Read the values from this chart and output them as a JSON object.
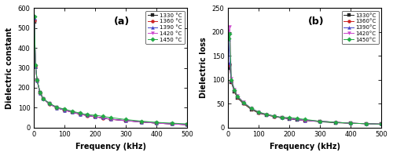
{
  "title_a": "(a)",
  "title_b": "(b)",
  "xlabel": "Frequency (kHz)",
  "ylabel_a": "Dielectric constant",
  "ylabel_b": "Dielectric loss",
  "ylim_a": [
    0,
    600
  ],
  "ylim_b": [
    0,
    250
  ],
  "xlim": [
    0,
    500
  ],
  "yticks_a": [
    0,
    100,
    200,
    300,
    400,
    500,
    600
  ],
  "yticks_b": [
    0,
    50,
    100,
    150,
    200,
    250
  ],
  "xticks": [
    0,
    100,
    200,
    300,
    400,
    500
  ],
  "temperatures": [
    "1330",
    "1360",
    "1390",
    "1420",
    "1450"
  ],
  "legend_labels_a": [
    "1330 °C",
    "1360 °C",
    "1390 °C",
    "1420 °C",
    "1450 °C"
  ],
  "legend_labels_b": [
    "1330°C",
    "1360°C",
    "1390°C",
    "1420°C",
    "1450°C"
  ],
  "colors": [
    "#222222",
    "#cc2222",
    "#4444cc",
    "#cc44cc",
    "#22aa44"
  ],
  "markers": [
    "s",
    "o",
    "^",
    "v",
    "D"
  ],
  "freq_points": [
    1,
    5,
    10,
    20,
    30,
    50,
    75,
    100,
    125,
    150,
    175,
    200,
    225,
    250,
    300,
    350,
    400,
    450,
    500
  ],
  "dielectric_constant": {
    "1330": [
      530,
      310,
      240,
      175,
      145,
      120,
      100,
      88,
      78,
      68,
      60,
      55,
      48,
      42,
      35,
      28,
      22,
      18,
      15
    ],
    "1360": [
      540,
      305,
      235,
      172,
      143,
      118,
      98,
      87,
      76,
      67,
      59,
      54,
      47,
      41,
      34,
      28,
      22,
      18,
      14
    ],
    "1390": [
      550,
      308,
      237,
      173,
      144,
      119,
      99,
      87,
      77,
      67,
      60,
      54,
      48,
      42,
      34,
      28,
      22,
      18,
      14
    ],
    "1420": [
      555,
      310,
      238,
      174,
      144,
      120,
      100,
      88,
      77,
      68,
      60,
      55,
      48,
      42,
      35,
      28,
      22,
      18,
      14
    ],
    "1450": [
      560,
      312,
      240,
      175,
      146,
      122,
      102,
      92,
      82,
      72,
      64,
      62,
      56,
      50,
      40,
      32,
      26,
      22,
      18
    ]
  },
  "dielectric_loss": {
    "1330": [
      125,
      130,
      95,
      75,
      62,
      50,
      38,
      30,
      26,
      23,
      20,
      18,
      16,
      15,
      12,
      10,
      9,
      8,
      7
    ],
    "1360": [
      130,
      132,
      97,
      77,
      64,
      51,
      39,
      31,
      27,
      23,
      21,
      19,
      17,
      15,
      13,
      11,
      9,
      8,
      7
    ],
    "1390": [
      185,
      135,
      98,
      78,
      65,
      52,
      40,
      32,
      27,
      24,
      21,
      19,
      17,
      15,
      13,
      11,
      9,
      8,
      7
    ],
    "1420": [
      195,
      212,
      103,
      80,
      66,
      53,
      40,
      32,
      27,
      24,
      21,
      19,
      17,
      15,
      13,
      11,
      9,
      8,
      7
    ],
    "1450": [
      187,
      197,
      100,
      79,
      65,
      52,
      40,
      32,
      28,
      24,
      21,
      21,
      19,
      17,
      13,
      11,
      9,
      8,
      7
    ]
  },
  "figsize": [
    5.0,
    1.99
  ],
  "dpi": 100
}
